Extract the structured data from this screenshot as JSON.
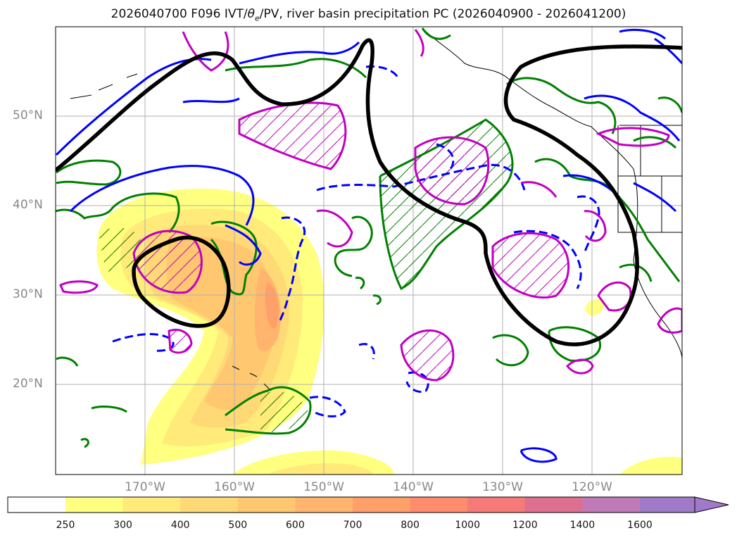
{
  "title": {
    "prefix": "2026040700 F096 IVT/",
    "theta": "θ",
    "sub": "e",
    "suffix": "/PV, river basin precipitation PC (2026040900 - 2026041200)"
  },
  "lat_labels": [
    "50°N",
    "40°N",
    "30°N",
    "20°N"
  ],
  "lon_labels": [
    "170°W",
    "160°W",
    "150°W",
    "140°W",
    "130°W",
    "120°W"
  ],
  "colorbar": {
    "ticks": [
      "250",
      "300",
      "400",
      "500",
      "600",
      "700",
      "800",
      "1000",
      "1200",
      "1400",
      "1600"
    ],
    "colors": [
      "#ffff80",
      "#ffea7a",
      "#ffd975",
      "#ffc870",
      "#ffb56d",
      "#ffa06a",
      "#ff8c6c",
      "#f57a78",
      "#dd7090",
      "#c07ab8",
      "#a07ac8"
    ]
  },
  "legend_colors": {
    "ivt_fill": "#ffe066",
    "theta_e": "#008000",
    "pv": "#0000ff",
    "precip_pc": "#c000c0",
    "jet": "#000000"
  }
}
